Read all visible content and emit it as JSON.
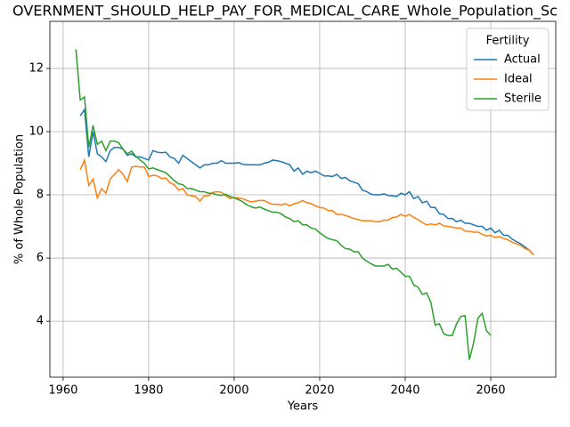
{
  "chart_data": {
    "type": "line",
    "title": "OVERNMENT_SHOULD_HELP_PAY_FOR_MEDICAL_CARE_Whole_Population_Sc",
    "x_label": "Years",
    "y_label": "% of Whole Population",
    "legend_title": "Fertility",
    "legend_position": "upper right",
    "grid": true,
    "xlim": [
      1956.9,
      2075.2
    ],
    "ylim": [
      2.23,
      13.49
    ],
    "xticks": [
      1960,
      1980,
      2000,
      2020,
      2040,
      2060
    ],
    "yticks": [
      4,
      6,
      8,
      10,
      12
    ],
    "x": [
      1963,
      1964,
      1965,
      1966,
      1967,
      1968,
      1969,
      1970,
      1971,
      1972,
      1973,
      1974,
      1975,
      1976,
      1977,
      1978,
      1979,
      1980,
      1981,
      1982,
      1983,
      1984,
      1985,
      1986,
      1987,
      1988,
      1989,
      1990,
      1991,
      1992,
      1993,
      1994,
      1995,
      1996,
      1997,
      1998,
      1999,
      2000,
      2001,
      2002,
      2003,
      2004,
      2005,
      2006,
      2007,
      2008,
      2009,
      2010,
      2011,
      2012,
      2013,
      2014,
      2015,
      2016,
      2017,
      2018,
      2019,
      2020,
      2021,
      2022,
      2023,
      2024,
      2025,
      2026,
      2027,
      2028,
      2029,
      2030,
      2031,
      2032,
      2033,
      2034,
      2035,
      2036,
      2037,
      2038,
      2039,
      2040,
      2041,
      2042,
      2043,
      2044,
      2045,
      2046,
      2047,
      2048,
      2049,
      2050,
      2051,
      2052,
      2053,
      2054,
      2055,
      2056,
      2057,
      2058,
      2059,
      2060,
      2061,
      2062,
      2063,
      2064,
      2065,
      2066,
      2067,
      2068,
      2069,
      2070
    ],
    "series": [
      {
        "name": "Actual",
        "color": "#1f77b4",
        "values": [
          null,
          10.5,
          10.7,
          9.2,
          10.0,
          9.3,
          9.2,
          9.05,
          9.4,
          9.5,
          9.5,
          9.45,
          9.25,
          9.3,
          9.2,
          9.2,
          9.15,
          9.1,
          9.4,
          9.35,
          9.33,
          9.35,
          9.2,
          9.15,
          9.0,
          9.25,
          9.15,
          9.05,
          8.95,
          8.85,
          8.95,
          8.95,
          9.0,
          9.0,
          9.08,
          9.0,
          9.0,
          9.0,
          9.02,
          8.97,
          8.95,
          8.95,
          8.95,
          8.95,
          9.0,
          9.03,
          9.1,
          9.08,
          9.05,
          9.0,
          8.95,
          8.75,
          8.85,
          8.65,
          8.75,
          8.7,
          8.75,
          8.68,
          8.6,
          8.6,
          8.58,
          8.65,
          8.52,
          8.55,
          8.45,
          8.4,
          8.35,
          8.15,
          8.1,
          8.02,
          8.0,
          8.0,
          8.03,
          7.98,
          7.97,
          7.95,
          8.05,
          8.0,
          8.1,
          7.88,
          7.95,
          7.75,
          7.8,
          7.6,
          7.6,
          7.4,
          7.38,
          7.25,
          7.25,
          7.15,
          7.2,
          7.1,
          7.1,
          7.05,
          7.0,
          7.0,
          6.88,
          6.95,
          6.8,
          6.88,
          6.72,
          6.72,
          6.6,
          6.52,
          6.45,
          6.35,
          6.25,
          6.1
        ]
      },
      {
        "name": "Ideal",
        "color": "#ff7f0e",
        "values": [
          null,
          8.8,
          9.1,
          8.3,
          8.5,
          7.9,
          8.2,
          8.05,
          8.5,
          8.65,
          8.8,
          8.65,
          8.42,
          8.88,
          8.9,
          8.88,
          8.88,
          8.58,
          8.62,
          8.6,
          8.52,
          8.53,
          8.38,
          8.32,
          8.15,
          8.2,
          8.0,
          7.97,
          7.95,
          7.8,
          7.97,
          7.97,
          8.08,
          8.1,
          8.08,
          7.98,
          7.88,
          7.92,
          7.9,
          7.88,
          7.82,
          7.78,
          7.8,
          7.82,
          7.82,
          7.75,
          7.7,
          7.7,
          7.68,
          7.72,
          7.65,
          7.72,
          7.75,
          7.82,
          7.75,
          7.72,
          7.65,
          7.6,
          7.58,
          7.5,
          7.5,
          7.38,
          7.38,
          7.35,
          7.3,
          7.25,
          7.22,
          7.18,
          7.18,
          7.18,
          7.15,
          7.15,
          7.2,
          7.2,
          7.28,
          7.3,
          7.38,
          7.32,
          7.38,
          7.28,
          7.22,
          7.12,
          7.05,
          7.08,
          7.05,
          7.1,
          7.02,
          7.0,
          6.98,
          6.95,
          6.95,
          6.85,
          6.85,
          6.82,
          6.82,
          6.75,
          6.7,
          6.72,
          6.65,
          6.68,
          6.62,
          6.58,
          6.5,
          6.45,
          6.4,
          6.3,
          6.25,
          6.1
        ]
      },
      {
        "name": "Sterile",
        "color": "#2ca02c",
        "values": [
          12.6,
          11.0,
          11.1,
          9.5,
          10.2,
          9.6,
          9.7,
          9.4,
          9.7,
          9.7,
          9.65,
          9.45,
          9.3,
          9.38,
          9.22,
          9.1,
          9.0,
          8.82,
          8.85,
          8.8,
          8.75,
          8.7,
          8.58,
          8.45,
          8.35,
          8.32,
          8.2,
          8.2,
          8.15,
          8.1,
          8.1,
          8.05,
          8.05,
          8.0,
          7.98,
          8.02,
          7.95,
          7.9,
          7.85,
          7.78,
          7.68,
          7.62,
          7.58,
          7.62,
          7.55,
          7.5,
          7.45,
          7.45,
          7.4,
          7.3,
          7.25,
          7.15,
          7.18,
          7.05,
          7.05,
          6.95,
          6.92,
          6.8,
          6.7,
          6.62,
          6.58,
          6.55,
          6.4,
          6.3,
          6.28,
          6.2,
          6.2,
          6.0,
          5.9,
          5.82,
          5.75,
          5.75,
          5.75,
          5.8,
          5.65,
          5.68,
          5.55,
          5.42,
          5.42,
          5.15,
          5.08,
          4.85,
          4.9,
          4.6,
          3.88,
          3.92,
          3.6,
          3.55,
          3.55,
          3.92,
          4.15,
          4.18,
          2.78,
          3.32,
          4.1,
          4.25,
          3.7,
          3.55,
          null,
          null,
          null,
          null,
          null,
          null,
          null,
          null,
          null,
          null
        ]
      }
    ]
  }
}
